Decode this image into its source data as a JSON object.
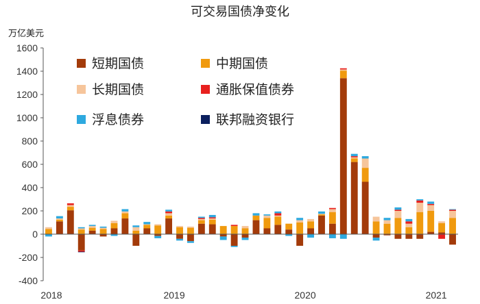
{
  "chart_data": {
    "type": "bar",
    "stacked": true,
    "title": "可交易国债净变化",
    "ylabel": "万亿美元",
    "ylim": [
      -400,
      1600
    ],
    "yticks": [
      -400,
      -200,
      0,
      200,
      400,
      600,
      800,
      1000,
      1200,
      1400,
      1600
    ],
    "x_labels": [
      "2018",
      "2019",
      "2020",
      "2021"
    ],
    "x_label_positions": [
      0,
      12,
      24,
      36
    ],
    "legend_location": "top-left, inside plot, 2 columns",
    "grid": false,
    "series": [
      {
        "name": "短期国债",
        "color": "#a33b0a",
        "values": [
          0,
          110,
          205,
          -140,
          30,
          -20,
          50,
          135,
          -100,
          50,
          -15,
          135,
          -40,
          -60,
          90,
          85,
          -20,
          -100,
          -30,
          120,
          50,
          80,
          40,
          -100,
          50,
          160,
          90,
          1340,
          620,
          450,
          -30,
          -10,
          -40,
          -40,
          -40,
          20,
          15,
          -90
        ]
      },
      {
        "name": "中期国债",
        "color": "#f09a0e",
        "values": [
          45,
          15,
          30,
          40,
          25,
          45,
          45,
          45,
          30,
          30,
          75,
          25,
          60,
          55,
          30,
          40,
          70,
          70,
          50,
          40,
          90,
          70,
          50,
          100,
          60,
          10,
          100,
          65,
          30,
          120,
          110,
          90,
          140,
          60,
          190,
          180,
          80,
          140
        ]
      },
      {
        "name": "长期国债",
        "color": "#f6c59b",
        "values": [
          15,
          10,
          15,
          10,
          15,
          10,
          20,
          15,
          30,
          5,
          10,
          20,
          10,
          10,
          10,
          10,
          0,
          0,
          20,
          0,
          20,
          10,
          0,
          20,
          20,
          5,
          25,
          10,
          10,
          80,
          40,
          30,
          60,
          30,
          80,
          50,
          15,
          60
        ]
      },
      {
        "name": "通胀保值债券",
        "color": "#e8201e",
        "values": [
          0,
          0,
          15,
          -10,
          0,
          0,
          0,
          0,
          0,
          0,
          0,
          15,
          0,
          0,
          10,
          10,
          0,
          10,
          0,
          0,
          0,
          20,
          0,
          0,
          0,
          0,
          10,
          10,
          10,
          0,
          0,
          0,
          10,
          20,
          20,
          10,
          -40,
          10
        ]
      },
      {
        "name": "浮息债券",
        "color": "#2ea9df",
        "values": [
          -20,
          20,
          0,
          10,
          10,
          10,
          -15,
          20,
          15,
          20,
          -20,
          15,
          -15,
          -15,
          10,
          20,
          -30,
          -10,
          -20,
          20,
          10,
          15,
          -15,
          20,
          -30,
          20,
          -35,
          -40,
          20,
          20,
          -25,
          20,
          20,
          20,
          10,
          20,
          0,
          5
        ]
      },
      {
        "name": "联邦融资银行",
        "color": "#0b1f5e",
        "values": [
          0,
          0,
          0,
          -5,
          0,
          0,
          0,
          0,
          0,
          0,
          0,
          0,
          0,
          0,
          0,
          0,
          0,
          0,
          0,
          0,
          0,
          0,
          0,
          0,
          0,
          0,
          0,
          0,
          0,
          0,
          0,
          0,
          0,
          0,
          0,
          0,
          0,
          0
        ]
      }
    ]
  }
}
